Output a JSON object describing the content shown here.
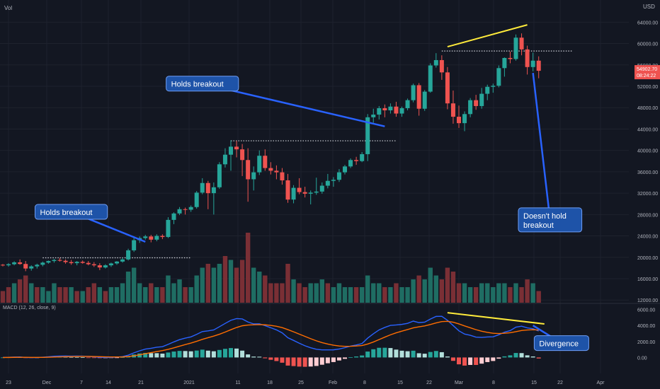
{
  "chart_data": {
    "type": "candlestick",
    "top_left_label": "Vol",
    "currency": "USD",
    "price_axis": {
      "ticks": [
        12000,
        16000,
        20000,
        24000,
        28000,
        32000,
        36000,
        40000,
        44000,
        48000,
        52000,
        56000,
        60000,
        64000
      ],
      "ylim": [
        11500,
        65500
      ]
    },
    "last_price": {
      "value": "54902.70",
      "countdown": "08:24:22",
      "color": "#ef5350"
    },
    "time_axis": [
      "23",
      "Dec",
      "7",
      "14",
      "21",
      "2021",
      "11",
      "18",
      "25",
      "Feb",
      "8",
      "15",
      "22",
      "Mar",
      "8",
      "15",
      "22",
      "Apr"
    ],
    "candles": [
      [
        18600,
        18750,
        18300,
        18500
      ],
      [
        18500,
        18900,
        18250,
        18700
      ],
      [
        18700,
        19250,
        18500,
        19050
      ],
      [
        19050,
        19600,
        18600,
        18750
      ],
      [
        18750,
        19300,
        17400,
        17900
      ],
      [
        17900,
        18500,
        17500,
        18300
      ],
      [
        18300,
        18800,
        17900,
        18600
      ],
      [
        18600,
        19200,
        18300,
        19000
      ],
      [
        19000,
        19400,
        18800,
        19300
      ],
      [
        19300,
        19700,
        19000,
        19500
      ],
      [
        19500,
        19900,
        19200,
        19350
      ],
      [
        19350,
        19600,
        18800,
        19100
      ],
      [
        19100,
        19500,
        18600,
        18900
      ],
      [
        18900,
        19300,
        18500,
        19150
      ],
      [
        19150,
        19400,
        18800,
        18950
      ],
      [
        18950,
        19300,
        18500,
        18700
      ],
      [
        18700,
        19100,
        18200,
        18500
      ],
      [
        18500,
        18900,
        17600,
        18100
      ],
      [
        18100,
        18700,
        17900,
        18500
      ],
      [
        18500,
        19000,
        18200,
        18850
      ],
      [
        18850,
        19300,
        18600,
        19200
      ],
      [
        19200,
        19900,
        19000,
        19600
      ],
      [
        19600,
        21600,
        19400,
        21300
      ],
      [
        21300,
        23600,
        21000,
        23200
      ],
      [
        23200,
        23900,
        22700,
        23600
      ],
      [
        23600,
        24200,
        23300,
        23900
      ],
      [
        23900,
        24200,
        22800,
        23300
      ],
      [
        23300,
        24300,
        23000,
        24000
      ],
      [
        24000,
        24300,
        23400,
        23800
      ],
      [
        23800,
        27500,
        23600,
        27000
      ],
      [
        27000,
        28400,
        26200,
        28200
      ],
      [
        28200,
        29400,
        27900,
        29000
      ],
      [
        29000,
        29300,
        28000,
        28900
      ],
      [
        28900,
        29700,
        28500,
        29400
      ],
      [
        29400,
        32400,
        29100,
        32100
      ],
      [
        32100,
        34800,
        31800,
        33900
      ],
      [
        33900,
        34300,
        29000,
        32000
      ],
      [
        32000,
        34000,
        28000,
        33100
      ],
      [
        33100,
        37800,
        32800,
        37400
      ],
      [
        37400,
        40400,
        36800,
        39200
      ],
      [
        39200,
        41900,
        36200,
        40700
      ],
      [
        40700,
        41800,
        38700,
        40200
      ],
      [
        40200,
        41200,
        35200,
        38200
      ],
      [
        38200,
        40400,
        30400,
        34600
      ],
      [
        34600,
        37000,
        32500,
        35900
      ],
      [
        35900,
        40000,
        35400,
        39000
      ],
      [
        39000,
        40200,
        36200,
        36700
      ],
      [
        36700,
        37800,
        35500,
        36200
      ],
      [
        36200,
        37200,
        34600,
        35900
      ],
      [
        35900,
        36700,
        33600,
        34400
      ],
      [
        34400,
        35600,
        30200,
        30800
      ],
      [
        30800,
        33500,
        30100,
        33000
      ],
      [
        33000,
        34800,
        31800,
        32200
      ],
      [
        32200,
        33200,
        31200,
        31900
      ],
      [
        31900,
        32500,
        29900,
        32100
      ],
      [
        32100,
        34900,
        31700,
        32300
      ],
      [
        32300,
        34000,
        31900,
        33400
      ],
      [
        33400,
        35600,
        32900,
        34300
      ],
      [
        34300,
        35000,
        33200,
        34500
      ],
      [
        34500,
        36500,
        34100,
        35900
      ],
      [
        35900,
        37300,
        35500,
        37000
      ],
      [
        37000,
        38500,
        36700,
        38200
      ],
      [
        38200,
        38800,
        37300,
        38000
      ],
      [
        38000,
        39700,
        37800,
        39300
      ],
      [
        39300,
        46800,
        38000,
        46200
      ],
      [
        46200,
        47800,
        45200,
        46700
      ],
      [
        46700,
        48300,
        45800,
        47900
      ],
      [
        47900,
        48600,
        46200,
        47500
      ],
      [
        47500,
        48800,
        46900,
        48200
      ],
      [
        48200,
        49100,
        46300,
        46900
      ],
      [
        46900,
        48200,
        46300,
        47900
      ],
      [
        47900,
        49700,
        47500,
        49400
      ],
      [
        49400,
        52500,
        49000,
        52200
      ],
      [
        52200,
        52600,
        46500,
        47800
      ],
      [
        47800,
        51300,
        47400,
        51000
      ],
      [
        51000,
        56300,
        50800,
        55900
      ],
      [
        55900,
        58200,
        55500,
        56900
      ],
      [
        56900,
        57800,
        53200,
        54600
      ],
      [
        54600,
        55600,
        47700,
        48800
      ],
      [
        48800,
        51200,
        45000,
        46300
      ],
      [
        46300,
        48400,
        44200,
        45100
      ],
      [
        45100,
        47300,
        43600,
        46800
      ],
      [
        46800,
        49800,
        46200,
        49400
      ],
      [
        49400,
        50400,
        47600,
        48300
      ],
      [
        48300,
        51700,
        47800,
        50600
      ],
      [
        50600,
        52300,
        49400,
        51900
      ],
      [
        51900,
        52500,
        50800,
        52100
      ],
      [
        52100,
        55900,
        51800,
        55400
      ],
      [
        55400,
        57400,
        53800,
        57300
      ],
      [
        57300,
        58500,
        56300,
        57100
      ],
      [
        57100,
        61700,
        56800,
        61100
      ],
      [
        61100,
        61900,
        57800,
        58900
      ],
      [
        58900,
        59600,
        54200,
        55600
      ],
      [
        55600,
        58300,
        54800,
        56800
      ],
      [
        56800,
        57600,
        53500,
        54903
      ]
    ],
    "volume": [
      [
        3,
        "down"
      ],
      [
        4,
        "down"
      ],
      [
        5,
        "up"
      ],
      [
        6,
        "down"
      ],
      [
        7,
        "down"
      ],
      [
        5,
        "up"
      ],
      [
        4,
        "down"
      ],
      [
        4,
        "up"
      ],
      [
        3,
        "up"
      ],
      [
        5,
        "up"
      ],
      [
        4,
        "down"
      ],
      [
        4,
        "down"
      ],
      [
        4,
        "up"
      ],
      [
        3,
        "down"
      ],
      [
        3,
        "up"
      ],
      [
        4,
        "down"
      ],
      [
        5,
        "down"
      ],
      [
        4,
        "up"
      ],
      [
        3,
        "down"
      ],
      [
        4,
        "up"
      ],
      [
        4,
        "up"
      ],
      [
        5,
        "up"
      ],
      [
        8,
        "up"
      ],
      [
        9,
        "up"
      ],
      [
        5,
        "up"
      ],
      [
        4,
        "up"
      ],
      [
        5,
        "down"
      ],
      [
        4,
        "up"
      ],
      [
        4,
        "down"
      ],
      [
        7,
        "up"
      ],
      [
        5,
        "up"
      ],
      [
        6,
        "up"
      ],
      [
        4,
        "down"
      ],
      [
        4,
        "up"
      ],
      [
        7,
        "up"
      ],
      [
        9,
        "up"
      ],
      [
        10,
        "down"
      ],
      [
        9,
        "up"
      ],
      [
        10,
        "up"
      ],
      [
        12,
        "down"
      ],
      [
        11,
        "up"
      ],
      [
        9,
        "down"
      ],
      [
        11,
        "down"
      ],
      [
        18,
        "down"
      ],
      [
        9,
        "up"
      ],
      [
        8,
        "up"
      ],
      [
        7,
        "down"
      ],
      [
        5,
        "down"
      ],
      [
        5,
        "down"
      ],
      [
        5,
        "down"
      ],
      [
        10,
        "down"
      ],
      [
        6,
        "up"
      ],
      [
        5,
        "down"
      ],
      [
        4,
        "down"
      ],
      [
        5,
        "up"
      ],
      [
        5,
        "up"
      ],
      [
        6,
        "up"
      ],
      [
        5,
        "down"
      ],
      [
        4,
        "up"
      ],
      [
        5,
        "up"
      ],
      [
        4,
        "up"
      ],
      [
        4,
        "up"
      ],
      [
        4,
        "down"
      ],
      [
        4,
        "up"
      ],
      [
        7,
        "up"
      ],
      [
        5,
        "up"
      ],
      [
        5,
        "up"
      ],
      [
        4,
        "down"
      ],
      [
        4,
        "up"
      ],
      [
        5,
        "down"
      ],
      [
        4,
        "up"
      ],
      [
        4,
        "up"
      ],
      [
        6,
        "up"
      ],
      [
        7,
        "down"
      ],
      [
        6,
        "up"
      ],
      [
        9,
        "up"
      ],
      [
        7,
        "up"
      ],
      [
        6,
        "down"
      ],
      [
        9,
        "down"
      ],
      [
        8,
        "down"
      ],
      [
        5,
        "down"
      ],
      [
        5,
        "up"
      ],
      [
        4,
        "up"
      ],
      [
        4,
        "down"
      ],
      [
        5,
        "up"
      ],
      [
        5,
        "up"
      ],
      [
        4,
        "up"
      ],
      [
        5,
        "up"
      ],
      [
        5,
        "up"
      ],
      [
        4,
        "down"
      ],
      [
        5,
        "up"
      ],
      [
        4,
        "down"
      ],
      [
        6,
        "down"
      ],
      [
        5,
        "up"
      ],
      [
        3,
        "down"
      ]
    ],
    "volume_scale_max": 20,
    "macd": {
      "label": "MACD (12, 26, close, 9)",
      "axis_ticks": [
        0,
        2000,
        4000,
        6000
      ],
      "ylim": [
        -2000,
        6500
      ],
      "tick_labels": [
        "0.00",
        "2000.00",
        "4000.00",
        "6000.00"
      ]
    },
    "annotations": [
      {
        "text": [
          "Holds breakout"
        ],
        "target_index": 25,
        "target_price": 22900,
        "box_index": 12,
        "box_price": 28500
      },
      {
        "text": [
          "Holds breakout"
        ],
        "target_index": 67,
        "target_price": 44500,
        "box_index": 35,
        "box_price": 52500
      },
      {
        "text": [
          "Doesn't hold",
          "breakout"
        ],
        "target_index": 93,
        "target_price": 54500,
        "box_index": 96,
        "box_price": 27000
      },
      {
        "text": [
          "Divergence"
        ],
        "target_index": 93,
        "target_price": 4000,
        "box_index": 98,
        "box_price": 1800
      }
    ],
    "resistance_lines": [
      {
        "price": 19900,
        "from_index": 7,
        "to_index": 33
      },
      {
        "price": 41800,
        "from_index": 40,
        "to_index": 69
      },
      {
        "price": 58600,
        "from_index": 77,
        "to_index": 100
      }
    ],
    "trend_lines": [
      {
        "panel": "price",
        "from_index": 78,
        "from_value": 59400,
        "to_index": 92,
        "to_value": 63500,
        "color": "#ffeb3b"
      },
      {
        "panel": "macd",
        "from_index": 78,
        "from_value": 5600,
        "to_index": 95,
        "to_value": 4200,
        "color": "#ffeb3b"
      }
    ]
  }
}
